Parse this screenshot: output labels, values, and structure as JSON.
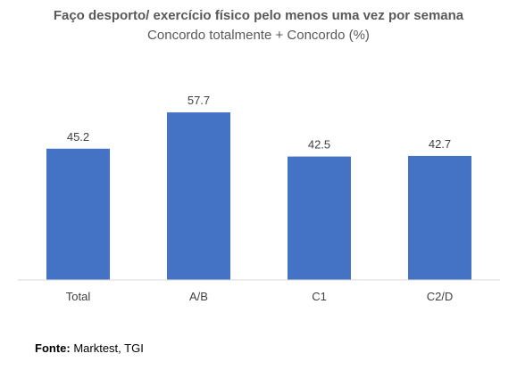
{
  "chart_data": {
    "type": "bar",
    "title": "Faço desporto/ exercício físico pelo menos uma vez por semana",
    "subtitle": "Concordo totalmente + Concordo (%)",
    "categories": [
      "Total",
      "A/B",
      "C1",
      "C2/D"
    ],
    "values": [
      45.2,
      57.7,
      42.5,
      42.7
    ],
    "data_labels": [
      "45.2",
      "57.7",
      "42.5",
      "42.7"
    ],
    "ylim": [
      0,
      70
    ],
    "grid": false,
    "legend": "none",
    "bar_color": "#4472C4",
    "axis_color": "#D9D9D9"
  },
  "source": {
    "label": "Fonte:",
    "text": " Marktest, TGI"
  }
}
